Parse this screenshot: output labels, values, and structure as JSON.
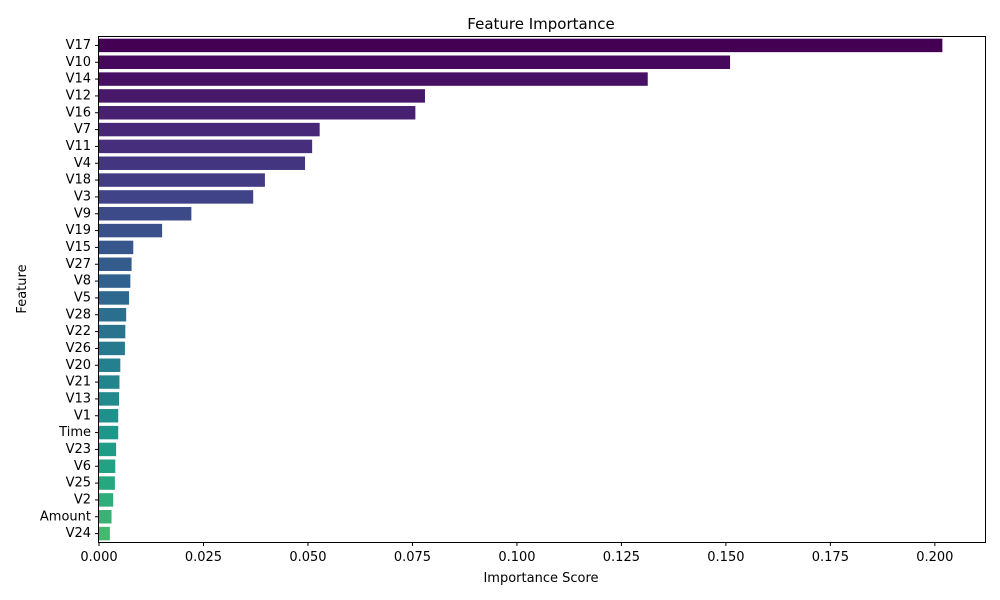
{
  "chart_data": {
    "type": "bar",
    "orientation": "horizontal",
    "title": "Feature Importance",
    "xlabel": "Importance Score",
    "ylabel": "Feature",
    "xlim": [
      0,
      0.212
    ],
    "xticks": [
      "0.000",
      "0.025",
      "0.050",
      "0.075",
      "0.100",
      "0.125",
      "0.150",
      "0.175",
      "0.200"
    ],
    "grid": false,
    "colormap": "viridis",
    "categories": [
      "V17",
      "V10",
      "V14",
      "V12",
      "V16",
      "V7",
      "V11",
      "V4",
      "V18",
      "V3",
      "V9",
      "V19",
      "V15",
      "V27",
      "V8",
      "V5",
      "V28",
      "V22",
      "V26",
      "V20",
      "V21",
      "V13",
      "V1",
      "Time",
      "V23",
      "V6",
      "V25",
      "V2",
      "Amount",
      "V24"
    ],
    "values": [
      0.2018,
      0.151,
      0.1313,
      0.078,
      0.0757,
      0.0528,
      0.051,
      0.0493,
      0.0397,
      0.0369,
      0.0221,
      0.0151,
      0.0082,
      0.0078,
      0.0075,
      0.0072,
      0.0065,
      0.0063,
      0.0062,
      0.0051,
      0.0049,
      0.0048,
      0.0046,
      0.0046,
      0.0041,
      0.0039,
      0.0038,
      0.0034,
      0.003,
      0.0026
    ],
    "colors": [
      "#440154",
      "#46085c",
      "#471064",
      "#48186a",
      "#482071",
      "#472777",
      "#462e7c",
      "#443581",
      "#423c84",
      "#404387",
      "#3c4a8a",
      "#39508b",
      "#36568c",
      "#335c8d",
      "#30628d",
      "#2e688e",
      "#2b6e8e",
      "#29738e",
      "#27798e",
      "#247f8e",
      "#22858d",
      "#208a8c",
      "#1f908b",
      "#1e9689",
      "#1f9c86",
      "#22a183",
      "#27a77f",
      "#2fad7a",
      "#3ab275",
      "#45b86f"
    ]
  }
}
